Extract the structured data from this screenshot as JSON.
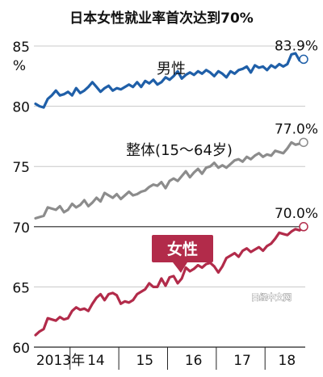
{
  "chart_data": {
    "type": "line",
    "title": "日本女性就业率首次达到70%",
    "y_unit": "%",
    "ylim": [
      60,
      85
    ],
    "y_ticks": [
      85,
      80,
      75,
      70,
      65,
      60
    ],
    "x_tick_labels": [
      "2013年",
      "14",
      "15",
      "16",
      "17",
      "18"
    ],
    "watermark": "日经中文网",
    "reference_line": 70,
    "series": [
      {
        "name": "男性",
        "color": "#1f5fa8",
        "end_label": "83.9%",
        "values": [
          80.2,
          80.0,
          79.9,
          80.6,
          80.9,
          81.3,
          80.9,
          81.0,
          81.2,
          80.9,
          81.5,
          81.1,
          81.3,
          81.6,
          82.0,
          81.6,
          81.2,
          81.5,
          81.7,
          81.3,
          81.5,
          81.4,
          81.6,
          81.8,
          81.6,
          82.0,
          81.6,
          82.1,
          81.9,
          82.2,
          81.8,
          82.0,
          82.4,
          82.2,
          82.5,
          82.9,
          82.3,
          82.6,
          82.8,
          82.6,
          82.9,
          82.7,
          83.0,
          82.8,
          82.5,
          82.9,
          82.7,
          82.4,
          82.9,
          82.7,
          83.0,
          83.1,
          83.3,
          82.8,
          83.4,
          83.2,
          83.3,
          83.0,
          83.4,
          83.2,
          83.5,
          83.3,
          83.5,
          84.3,
          84.4,
          83.8,
          83.9
        ]
      },
      {
        "name": "整体(15～64岁)",
        "color": "#8c8c8c",
        "end_label": "77.0%",
        "values": [
          70.7,
          70.8,
          70.9,
          71.6,
          71.5,
          71.4,
          71.7,
          71.2,
          71.4,
          71.9,
          71.6,
          71.8,
          72.2,
          71.7,
          72.0,
          72.4,
          72.1,
          72.8,
          72.6,
          72.4,
          72.7,
          72.3,
          72.6,
          72.9,
          72.6,
          72.7,
          72.9,
          73.0,
          73.3,
          73.5,
          73.4,
          73.7,
          73.2,
          73.8,
          74.0,
          73.8,
          74.2,
          74.6,
          74.1,
          74.5,
          74.8,
          74.4,
          74.9,
          75.0,
          75.3,
          74.9,
          75.1,
          74.9,
          75.2,
          75.5,
          75.6,
          75.4,
          75.8,
          75.6,
          75.9,
          76.1,
          75.8,
          76.0,
          75.9,
          76.3,
          76.2,
          76.1,
          76.5,
          77.0,
          76.8,
          76.9,
          77.0
        ]
      },
      {
        "name": "女性",
        "color": "#b22b4a",
        "end_label": "70.0%",
        "values": [
          61.0,
          61.3,
          61.5,
          62.4,
          62.3,
          62.2,
          62.5,
          62.3,
          62.4,
          63.0,
          63.3,
          63.1,
          63.2,
          63.0,
          63.6,
          64.1,
          64.4,
          63.9,
          64.4,
          64.5,
          64.3,
          63.6,
          63.8,
          63.7,
          63.9,
          64.4,
          64.6,
          64.8,
          65.3,
          65.0,
          65.0,
          65.7,
          65.1,
          65.8,
          65.9,
          65.3,
          65.7,
          66.6,
          66.3,
          66.5,
          66.8,
          66.6,
          66.9,
          67.0,
          66.7,
          66.2,
          66.7,
          67.4,
          67.6,
          67.8,
          67.5,
          68.0,
          68.2,
          67.9,
          68.1,
          68.3,
          68.0,
          68.4,
          68.6,
          69.0,
          69.5,
          69.4,
          69.3,
          69.6,
          69.8,
          69.7,
          70.0
        ]
      }
    ]
  }
}
